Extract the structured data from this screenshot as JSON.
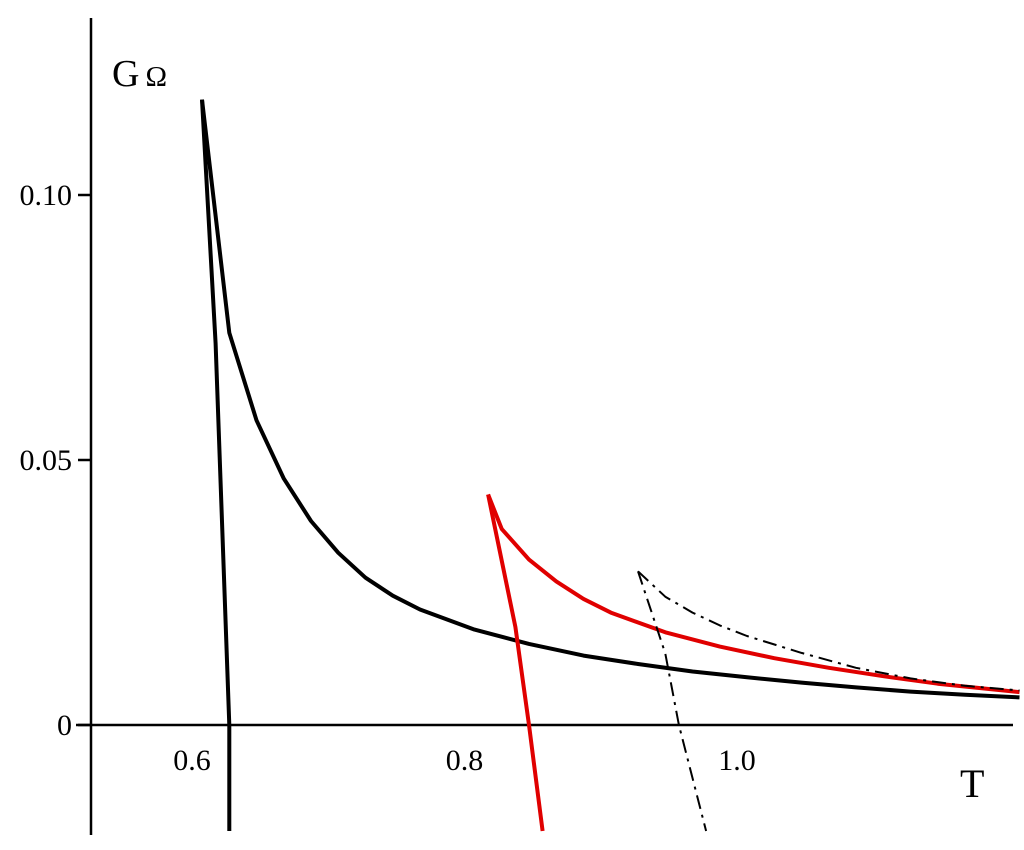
{
  "chart_data": {
    "type": "line",
    "title": "",
    "xlabel": "T",
    "ylabel_main": "G",
    "ylabel_sub": "Ω",
    "xlim": [
      0.54,
      1.2
    ],
    "ylim": [
      -0.02,
      0.13
    ],
    "x_ticks": [
      {
        "value": 0.6,
        "label": "0.6"
      },
      {
        "value": 0.8,
        "label": "0.8"
      },
      {
        "value": 1.0,
        "label": "1.0"
      }
    ],
    "y_ticks": [
      {
        "value": 0.0,
        "label": "0"
      },
      {
        "value": 0.05,
        "label": "0.05"
      },
      {
        "value": 0.1,
        "label": "0.10"
      }
    ],
    "grid": false,
    "legend": "none",
    "series": [
      {
        "color": "#000000",
        "style": "solid",
        "upper_branch": [
          [
            0.6,
            0.118
          ],
          [
            0.62,
            0.074
          ],
          [
            0.64,
            0.0575
          ],
          [
            0.66,
            0.0465
          ],
          [
            0.68,
            0.0385
          ],
          [
            0.7,
            0.0325
          ],
          [
            0.72,
            0.0278
          ],
          [
            0.74,
            0.0244
          ],
          [
            0.76,
            0.0218
          ],
          [
            0.8,
            0.018
          ],
          [
            0.84,
            0.0153
          ],
          [
            0.88,
            0.0131
          ],
          [
            0.92,
            0.0115
          ],
          [
            0.96,
            0.0101
          ],
          [
            1.0,
            0.009
          ],
          [
            1.04,
            0.008
          ],
          [
            1.08,
            0.0071
          ],
          [
            1.12,
            0.0063
          ],
          [
            1.16,
            0.0057
          ],
          [
            1.2,
            0.0052
          ]
        ],
        "lower_branch": [
          [
            0.6,
            0.118
          ],
          [
            0.61,
            0.072
          ],
          [
            0.62,
            0.0
          ],
          [
            0.62,
            -0.02
          ]
        ]
      },
      {
        "color": "#e00000",
        "style": "solid",
        "upper_branch": [
          [
            0.81,
            0.0435
          ],
          [
            0.82,
            0.037
          ],
          [
            0.84,
            0.0312
          ],
          [
            0.86,
            0.0271
          ],
          [
            0.88,
            0.0238
          ],
          [
            0.9,
            0.0212
          ],
          [
            0.94,
            0.0175
          ],
          [
            0.98,
            0.0148
          ],
          [
            1.02,
            0.0126
          ],
          [
            1.06,
            0.0108
          ],
          [
            1.1,
            0.0092
          ],
          [
            1.14,
            0.0078
          ],
          [
            1.2,
            0.0062
          ]
        ],
        "lower_branch": [
          [
            0.81,
            0.0435
          ],
          [
            0.83,
            0.0185
          ],
          [
            0.84,
            0.0
          ],
          [
            0.85,
            -0.02
          ]
        ]
      },
      {
        "color": "#000000",
        "style": "dashdot",
        "upper_branch": [
          [
            0.92,
            0.029
          ],
          [
            0.94,
            0.0242
          ],
          [
            0.96,
            0.0212
          ],
          [
            0.98,
            0.0188
          ],
          [
            1.0,
            0.0168
          ],
          [
            1.04,
            0.0136
          ],
          [
            1.08,
            0.0108
          ],
          [
            1.12,
            0.0088
          ],
          [
            1.16,
            0.0074
          ],
          [
            1.2,
            0.0065
          ]
        ],
        "lower_branch": [
          [
            0.92,
            0.029
          ],
          [
            0.94,
            0.0135
          ],
          [
            0.95,
            0.0
          ],
          [
            0.97,
            -0.02
          ]
        ]
      }
    ]
  }
}
